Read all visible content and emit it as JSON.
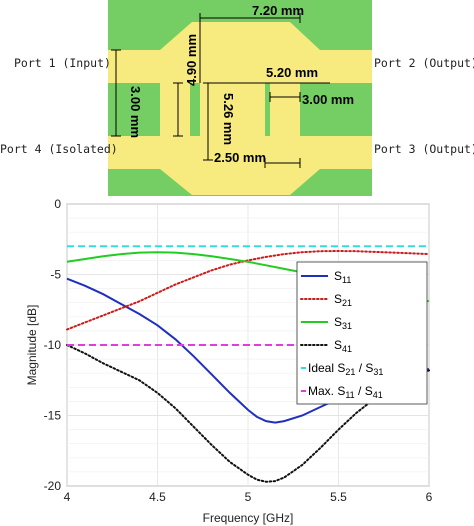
{
  "layout_figure": {
    "colors": {
      "substrate": "#74ce63",
      "metal": "#f7ea7e",
      "dark_edge": "#3e9a36"
    },
    "ports": [
      {
        "id": "p1",
        "label": "Port 1 (Input)"
      },
      {
        "id": "p2",
        "label": "Port 2 (Output)"
      },
      {
        "id": "p3",
        "label": "Port 3 (Output)"
      },
      {
        "id": "p4",
        "label": "Port 4 (Isolated)"
      }
    ],
    "dimensions": [
      {
        "id": "d720",
        "label": "7.20 mm"
      },
      {
        "id": "d490",
        "label": "4.90 mm"
      },
      {
        "id": "d300v",
        "label": "3.00 mm"
      },
      {
        "id": "d520",
        "label": "5.20 mm"
      },
      {
        "id": "d300h",
        "label": "3.00 mm"
      },
      {
        "id": "d526",
        "label": "5.26 mm"
      },
      {
        "id": "d250",
        "label": "2.50 mm"
      }
    ]
  },
  "chart_data": {
    "type": "line",
    "xlabel": "Frequency [GHz]",
    "ylabel": "Magnitude [dB]",
    "xlim": [
      4,
      6
    ],
    "ylim": [
      -20,
      0
    ],
    "xticks": [
      4,
      4.5,
      5,
      5.5,
      6
    ],
    "yticks": [
      0,
      -5,
      -10,
      -15,
      -20
    ],
    "grid": true,
    "legend_position": "bottom-right",
    "series": [
      {
        "name": "S11",
        "sub": "11",
        "color": "#1f2fbf",
        "style": "solid",
        "x": [
          4.0,
          4.1,
          4.2,
          4.3,
          4.4,
          4.5,
          4.6,
          4.7,
          4.8,
          4.9,
          5.0,
          5.05,
          5.1,
          5.15,
          5.2,
          5.3,
          5.4,
          5.5,
          5.6,
          5.7,
          5.8,
          5.9,
          6.0
        ],
        "y": [
          -5.3,
          -5.8,
          -6.4,
          -7.1,
          -7.8,
          -8.6,
          -9.6,
          -10.8,
          -12.1,
          -13.4,
          -14.6,
          -15.1,
          -15.4,
          -15.5,
          -15.4,
          -15.0,
          -14.4,
          -13.8,
          -13.3,
          -12.8,
          -12.4,
          -12.0,
          -11.7
        ]
      },
      {
        "name": "S21",
        "sub": "21",
        "color": "#cc1b1b",
        "style": "dotted",
        "x": [
          4.0,
          4.1,
          4.2,
          4.3,
          4.4,
          4.5,
          4.6,
          4.7,
          4.8,
          4.9,
          5.0,
          5.1,
          5.2,
          5.3,
          5.4,
          5.5,
          5.6,
          5.7,
          5.8,
          5.9,
          6.0
        ],
        "y": [
          -8.9,
          -8.4,
          -7.9,
          -7.4,
          -6.9,
          -6.3,
          -5.7,
          -5.2,
          -4.7,
          -4.3,
          -4.0,
          -3.75,
          -3.55,
          -3.42,
          -3.35,
          -3.33,
          -3.35,
          -3.4,
          -3.45,
          -3.5,
          -3.55
        ]
      },
      {
        "name": "S31",
        "sub": "31",
        "color": "#22cc22",
        "style": "solid",
        "x": [
          4.0,
          4.1,
          4.2,
          4.3,
          4.4,
          4.5,
          4.6,
          4.7,
          4.8,
          4.9,
          5.0,
          5.1,
          5.2,
          5.3,
          5.4,
          5.5,
          5.6,
          5.7,
          5.8,
          5.9,
          6.0
        ],
        "y": [
          -4.1,
          -3.9,
          -3.7,
          -3.55,
          -3.45,
          -3.42,
          -3.45,
          -3.55,
          -3.7,
          -3.9,
          -4.1,
          -4.35,
          -4.6,
          -4.85,
          -5.1,
          -5.4,
          -5.7,
          -6.0,
          -6.3,
          -6.6,
          -6.9
        ]
      },
      {
        "name": "S41",
        "sub": "41",
        "color": "#111111",
        "style": "dotted",
        "x": [
          4.0,
          4.1,
          4.2,
          4.3,
          4.4,
          4.5,
          4.6,
          4.7,
          4.8,
          4.9,
          5.0,
          5.05,
          5.1,
          5.15,
          5.2,
          5.3,
          5.4,
          5.5,
          5.6,
          5.7,
          5.8,
          5.9,
          6.0
        ],
        "y": [
          -10.0,
          -10.6,
          -11.3,
          -11.9,
          -12.5,
          -13.4,
          -14.5,
          -15.8,
          -17.1,
          -18.3,
          -19.2,
          -19.55,
          -19.7,
          -19.65,
          -19.4,
          -18.5,
          -17.3,
          -16.0,
          -14.8,
          -13.8,
          -13.0,
          -12.3,
          -11.8
        ]
      },
      {
        "name": "Ideal S21 / S31",
        "label_main": "Ideal S",
        "sub1": "21",
        "mid": " / S",
        "sub2": "31",
        "color": "#33dddd",
        "style": "dashed",
        "x": [
          4,
          6
        ],
        "y": [
          -3.0,
          -3.0
        ]
      },
      {
        "name": "Max. S11 / S41",
        "label_main": "Max. S",
        "sub1": "11",
        "mid": " / S",
        "sub2": "41",
        "color": "#e03de0",
        "style": "dashed",
        "x": [
          4,
          6
        ],
        "y": [
          -10.0,
          -10.0
        ]
      }
    ]
  }
}
